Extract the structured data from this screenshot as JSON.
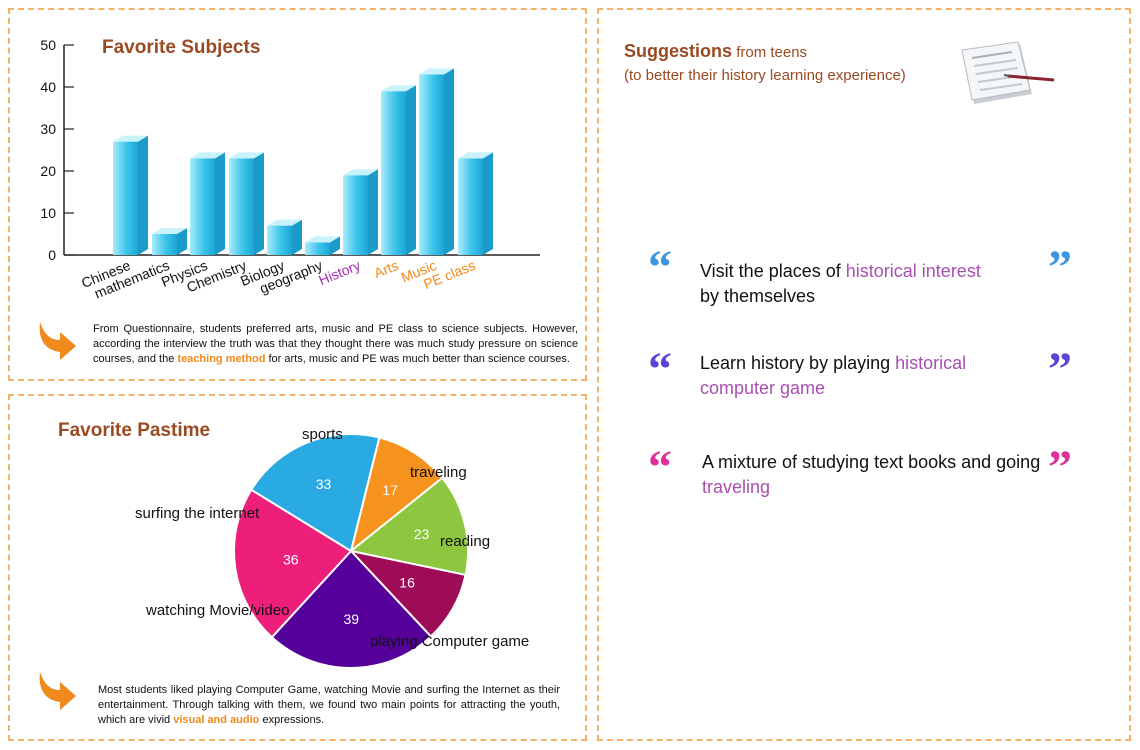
{
  "subjects": {
    "title": "Favorite Subjects",
    "note": {
      "before": "From Questionnaire, students preferred arts, music and PE class to science subjects. However, according the interview the truth was that they thought there was much study pressure on science courses, and the",
      "highlight": "teaching method",
      "after": "for arts, music and PE was much better than science courses."
    }
  },
  "pastime": {
    "title": "Favorite Pastime",
    "note": {
      "before": "Most students liked playing Computer Game, watching Movie and surfing the Internet as their entertainment. Through talking with them, we found two main points for attracting the youth, which are vivid",
      "highlight": "visual and audio",
      "after": "expressions."
    }
  },
  "suggestions": {
    "heading_bold": "Suggestions",
    "heading_rest": "from teens",
    "subheading": "(to better their history learning experience)",
    "items": [
      {
        "text": "Visit the places of",
        "highlight": "historical interest",
        "text2": "by themselves"
      },
      {
        "text": "Learn history by playing",
        "highlight": "historical computer game",
        "text2": ""
      },
      {
        "text": "A mixture of studying text books and going",
        "highlight": "traveling",
        "text2": ""
      }
    ],
    "quote_colors": [
      "#3b95e0",
      "#5a45d8",
      "#e0309a"
    ]
  },
  "chart_data": [
    {
      "type": "bar",
      "title": "Favorite Subjects",
      "categories": [
        "Chinese",
        "mathematics",
        "Physics",
        "Chemistry",
        "Biology",
        "geography",
        "History",
        "Arts",
        "Music",
        "PE class"
      ],
      "values": [
        27,
        5,
        23,
        23,
        7,
        3,
        19,
        39,
        43,
        23
      ],
      "category_colors": [
        "#111111",
        "#111111",
        "#111111",
        "#111111",
        "#111111",
        "#111111",
        "#a62fb0",
        "#f08a1c",
        "#f08a1c",
        "#f08a1c"
      ],
      "yticks": [
        "0",
        "10",
        "20",
        "30",
        "40",
        "50"
      ],
      "ylim": [
        0,
        50
      ],
      "bar_color": "#3cc4ea",
      "grid": false
    },
    {
      "type": "pie",
      "title": "Favorite Pastime",
      "labels": [
        "sports",
        "traveling",
        "reading",
        "playing Computer game",
        "watching Movie/video",
        "surfing the internet"
      ],
      "values": [
        17,
        23,
        16,
        39,
        36,
        33
      ],
      "colors": [
        "#f5931e",
        "#8dc63f",
        "#9e0b57",
        "#55009b",
        "#ed1f7a",
        "#2aaae2"
      ]
    }
  ]
}
